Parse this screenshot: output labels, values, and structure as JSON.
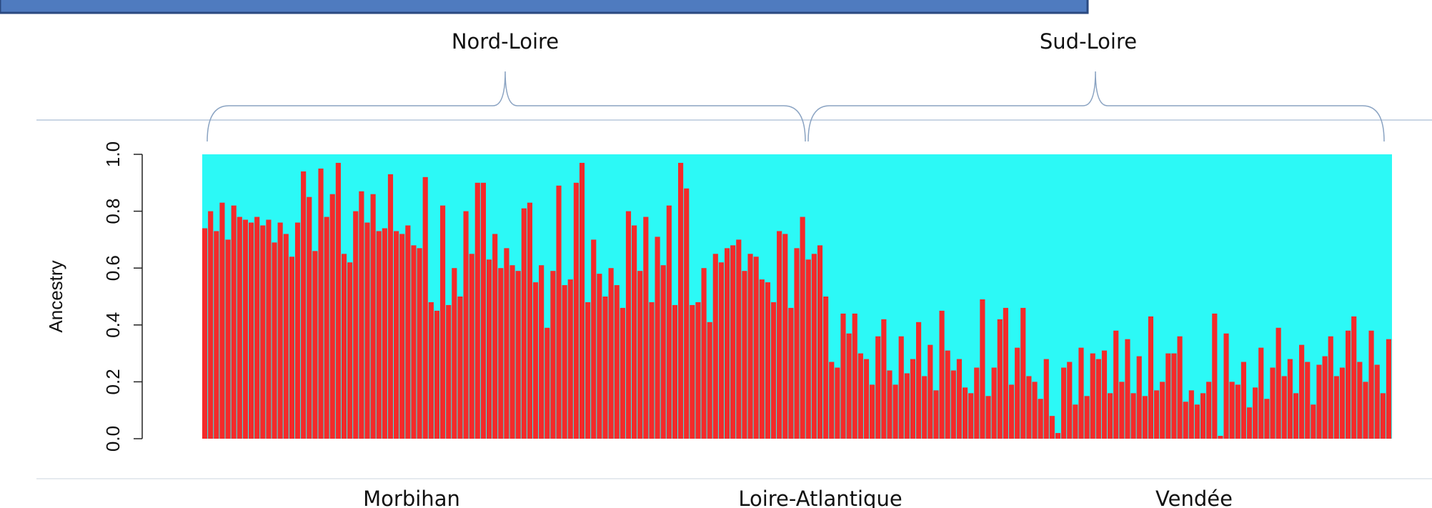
{
  "chart_data": {
    "type": "bar",
    "y_label": "Ancestry",
    "group_labels": [
      "Morbihan",
      "Loire-Atlantique",
      "Vendée"
    ],
    "region_labels": [
      "Nord-Loire",
      "Sud-Loire"
    ],
    "color": "#f42a2a",
    "background_color": "#2cf9f6",
    "ylim": [
      0,
      1
    ],
    "yticks": [
      {
        "value": 0,
        "label": "0.0"
      },
      {
        "value": 0.2,
        "label": "0.2"
      },
      {
        "value": 0.4,
        "label": "0.4"
      },
      {
        "value": 0.6,
        "label": "0.6"
      },
      {
        "value": 0.8,
        "label": "0.8"
      },
      {
        "value": 1,
        "label": "1.0"
      }
    ],
    "values": [
      0.74,
      0.8,
      0.73,
      0.83,
      0.7,
      0.82,
      0.78,
      0.77,
      0.76,
      0.78,
      0.75,
      0.77,
      0.69,
      0.76,
      0.72,
      0.64,
      0.76,
      0.94,
      0.85,
      0.66,
      0.95,
      0.78,
      0.86,
      0.97,
      0.65,
      0.62,
      0.8,
      0.87,
      0.76,
      0.86,
      0.73,
      0.74,
      0.93,
      0.73,
      0.72,
      0.75,
      0.68,
      0.67,
      0.92,
      0.48,
      0.45,
      0.82,
      0.47,
      0.6,
      0.5,
      0.8,
      0.65,
      0.9,
      0.9,
      0.63,
      0.72,
      0.6,
      0.67,
      0.61,
      0.59,
      0.81,
      0.83,
      0.55,
      0.61,
      0.39,
      0.59,
      0.89,
      0.54,
      0.56,
      0.9,
      0.97,
      0.48,
      0.7,
      0.58,
      0.5,
      0.6,
      0.54,
      0.46,
      0.8,
      0.75,
      0.59,
      0.78,
      0.48,
      0.71,
      0.61,
      0.82,
      0.47,
      0.97,
      0.88,
      0.47,
      0.48,
      0.6,
      0.41,
      0.65,
      0.62,
      0.67,
      0.68,
      0.7,
      0.59,
      0.65,
      0.64,
      0.56,
      0.55,
      0.48,
      0.73,
      0.72,
      0.46,
      0.67,
      0.78,
      0.63,
      0.65,
      0.68,
      0.5,
      0.27,
      0.25,
      0.44,
      0.37,
      0.44,
      0.3,
      0.28,
      0.19,
      0.36,
      0.42,
      0.24,
      0.19,
      0.36,
      0.23,
      0.28,
      0.41,
      0.22,
      0.33,
      0.17,
      0.45,
      0.31,
      0.24,
      0.28,
      0.18,
      0.16,
      0.25,
      0.49,
      0.15,
      0.25,
      0.42,
      0.46,
      0.19,
      0.32,
      0.46,
      0.22,
      0.2,
      0.14,
      0.28,
      0.08,
      0.02,
      0.25,
      0.27,
      0.12,
      0.32,
      0.15,
      0.3,
      0.28,
      0.31,
      0.16,
      0.38,
      0.2,
      0.35,
      0.16,
      0.29,
      0.15,
      0.43,
      0.17,
      0.2,
      0.3,
      0.3,
      0.36,
      0.13,
      0.17,
      0.12,
      0.16,
      0.2,
      0.44,
      0.01,
      0.37,
      0.2,
      0.19,
      0.27,
      0.11,
      0.18,
      0.32,
      0.14,
      0.25,
      0.39,
      0.22,
      0.28,
      0.16,
      0.33,
      0.27,
      0.12,
      0.26,
      0.29,
      0.36,
      0.22,
      0.25,
      0.38,
      0.43,
      0.27,
      0.2,
      0.38,
      0.26,
      0.16,
      0.35
    ]
  }
}
